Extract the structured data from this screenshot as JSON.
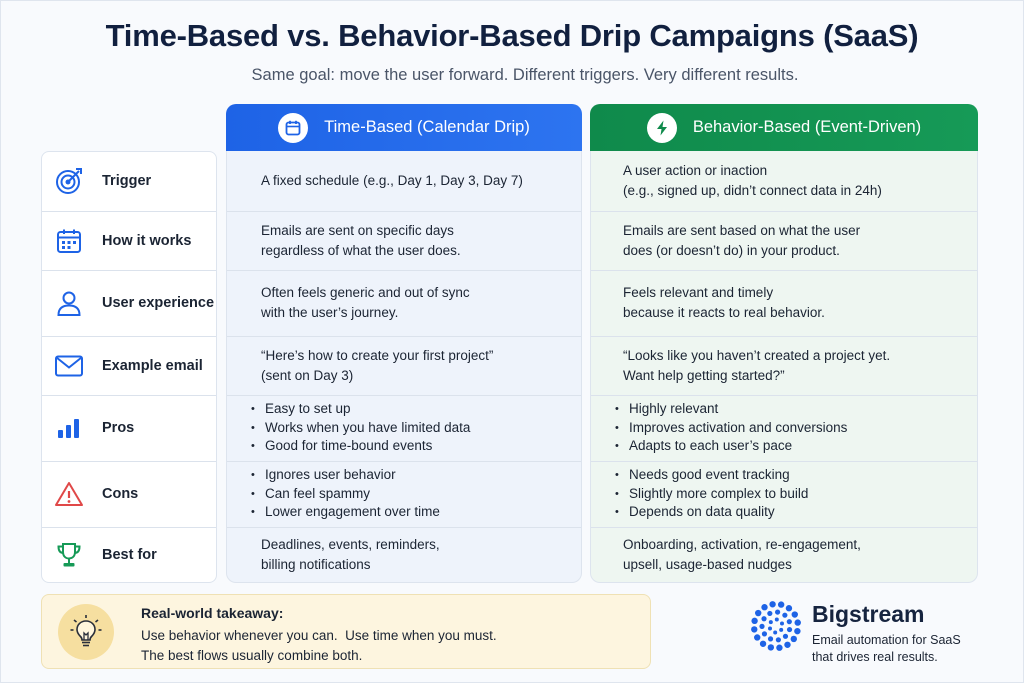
{
  "title": "Time-Based vs. Behavior-Based Drip Campaigns (SaaS)",
  "subtitle": "Same goal: move the user forward. Different triggers. Very different results.",
  "columns": {
    "time": {
      "label": "Time-Based (Calendar Drip)",
      "icon": "calendar-icon",
      "color": "#1e63e6"
    },
    "behavior": {
      "label": "Behavior-Based (Event-Driven)",
      "icon": "lightning-icon",
      "color": "#0f8a4b"
    }
  },
  "rows": {
    "trigger": {
      "label": "Trigger",
      "icon": "target-icon",
      "time": [
        "A fixed schedule (e.g., Day 1, Day 3, Day 7)"
      ],
      "behavior": [
        "A user action or inaction",
        "(e.g., signed up, didn’t connect data in 24h)"
      ]
    },
    "how": {
      "label": "How it works",
      "icon": "calendar-grid-icon",
      "time": [
        "Emails are sent on specific days",
        "regardless of what the user does."
      ],
      "behavior": [
        "Emails are sent based on what the user",
        "does (or doesn’t do) in your product."
      ]
    },
    "ux": {
      "label": "User experience",
      "icon": "user-icon",
      "time": [
        "Often feels generic and out of sync",
        "with the user’s journey."
      ],
      "behavior": [
        "Feels relevant and timely",
        "because it reacts to real behavior."
      ]
    },
    "email": {
      "label": "Example email",
      "icon": "envelope-icon",
      "time": [
        "“Here’s how to create your first project”",
        "(sent on Day 3)"
      ],
      "behavior": [
        "“Looks like you haven’t created a project yet.",
        "Want help getting started?”"
      ]
    },
    "pros": {
      "label": "Pros",
      "icon": "bar-chart-icon",
      "time": [
        "Easy to set up",
        "Works when you have limited data",
        "Good for time-bound events"
      ],
      "behavior": [
        "Highly relevant",
        "Improves activation and conversions",
        "Adapts to each user’s pace"
      ]
    },
    "cons": {
      "label": "Cons",
      "icon": "warning-icon",
      "time": [
        "Ignores user behavior",
        "Can feel spammy",
        "Lower engagement over time"
      ],
      "behavior": [
        "Needs good event tracking",
        "Slightly more complex to build",
        "Depends on data quality"
      ]
    },
    "best": {
      "label": "Best for",
      "icon": "trophy-icon",
      "time": [
        "Deadlines, events, reminders,",
        "billing notifications"
      ],
      "behavior": [
        "Onboarding, activation, re-engagement,",
        "upsell, usage-based nudges"
      ]
    }
  },
  "takeaway": {
    "icon": "lightbulb-icon",
    "title": "Real-world takeaway:",
    "line1": "Use behavior whenever you can.  Use time when you must.",
    "line2": "The best flows usually combine both."
  },
  "brand": {
    "name": "Bigstream",
    "tagline1": "Email automation for SaaS",
    "tagline2": "that drives real results.",
    "color": "#1e63e6"
  }
}
